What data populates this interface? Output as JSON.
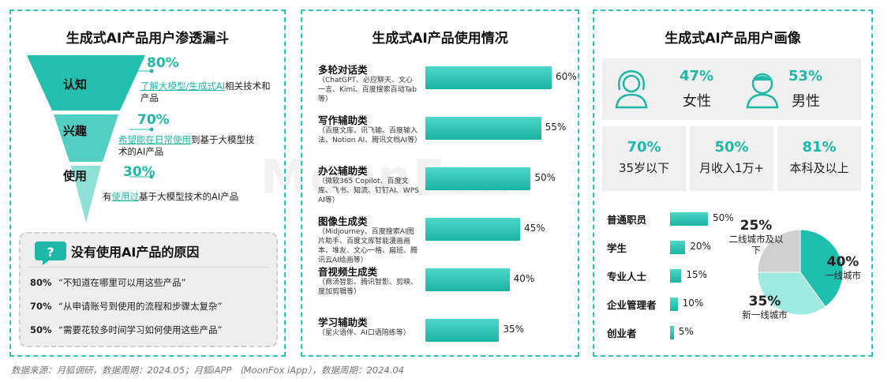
{
  "colors": {
    "teal": "#1fb8a8",
    "teal_light": "#9ee7df",
    "grey": "#cfcfcf"
  },
  "watermark": "MoonFox",
  "funnel": {
    "title": "生成式AI产品用户渗透漏斗",
    "stages": [
      {
        "label": "认知",
        "pct": "80%",
        "desc_hl": "了解大模型/生成式AI",
        "desc": "相关技术和产品"
      },
      {
        "label": "兴趣",
        "pct": "70%",
        "desc_hl": "希望能在日常使用",
        "desc": "到基于大模型技术的AI产品"
      },
      {
        "label": "使用",
        "pct": "30%",
        "desc_pre": "有",
        "desc_hl": "使用过",
        "desc": "基于大模型技术的AI产品"
      }
    ],
    "reasons": {
      "title": "没有使用AI产品的原因",
      "items": [
        {
          "pct": "80%",
          "text": "“不知道在哪里可以用这些产品”"
        },
        {
          "pct": "70%",
          "text": "“从申请账号到使用的流程和步骤太复杂”"
        },
        {
          "pct": "50%",
          "text": "“需要花较多时间学习如何使用这些产品”"
        }
      ]
    }
  },
  "usage": {
    "title": "生成式AI产品使用情况",
    "categories": [
      {
        "name": "多轮对话类",
        "desc": "（ChatGPT、必应聊天、文心一言、Kimi、百度搜索百动Tab等）",
        "value": 60,
        "label": "60%"
      },
      {
        "name": "写作辅助类",
        "desc": "（百度文库、讯飞输、百度输入法、Notion AI、腾讯文档AI等）",
        "value": 55,
        "label": "55%"
      },
      {
        "name": "办公辅助类",
        "desc": "（微软365 Copilot、百度文库、飞书、知流、钉钉AI、WPS AI等）",
        "value": 50,
        "label": "50%"
      },
      {
        "name": "图像生成类",
        "desc": "（Midjourney、百度搜索AI图片助手、百度文库智能漫画画本、堆友、文心一格、扁班、腾讯云AI绘画等）",
        "value": 45,
        "label": "45%"
      },
      {
        "name": "音视频生成类",
        "desc": "（商汤智影、腾讯智影、剪映、度加剪辑等）",
        "value": 40,
        "label": "40%"
      },
      {
        "name": "学习辅助类",
        "desc": "（星火语伴、AI口语陪练等）",
        "value": 35,
        "label": "35%"
      }
    ]
  },
  "profile": {
    "title": "生成式AI产品用户画像",
    "gender": [
      {
        "pct": "47%",
        "label": "女性",
        "icon": "female-user-icon"
      },
      {
        "pct": "53%",
        "label": "男性",
        "icon": "male-user-icon"
      }
    ],
    "stats": [
      {
        "pct": "70%",
        "label": "35岁以下"
      },
      {
        "pct": "50%",
        "label": "月收入1万+"
      },
      {
        "pct": "81%",
        "label": "本科及以上"
      }
    ]
  },
  "chart_data": [
    {
      "type": "bar",
      "title": "生成式AI产品使用情况",
      "categories": [
        "多轮对话类",
        "写作辅助类",
        "办公辅助类",
        "图像生成类",
        "音视频生成类",
        "学习辅助类"
      ],
      "values": [
        60,
        55,
        50,
        45,
        40,
        35
      ]
    },
    {
      "type": "bar",
      "categories": [
        "普通职员",
        "学生",
        "专业人士",
        "企业管理者",
        "创业者"
      ],
      "values": [
        50,
        20,
        15,
        10,
        5
      ],
      "labels": [
        "50%",
        "20%",
        "15%",
        "10%",
        "5%"
      ]
    },
    {
      "type": "pie",
      "categories": [
        "一线城市",
        "新一线城市",
        "二线城市及以下"
      ],
      "values": [
        40,
        35,
        25
      ],
      "labels": [
        "40%",
        "35%",
        "25%"
      ],
      "colors": [
        "#1fbfae",
        "#9ee9e0",
        "#cfcfcf"
      ]
    }
  ],
  "footer": "数据来源：月狐调研，数据周期：2024.05；月狐iAPP （MoonFox iApp），数据周期：2024.04"
}
